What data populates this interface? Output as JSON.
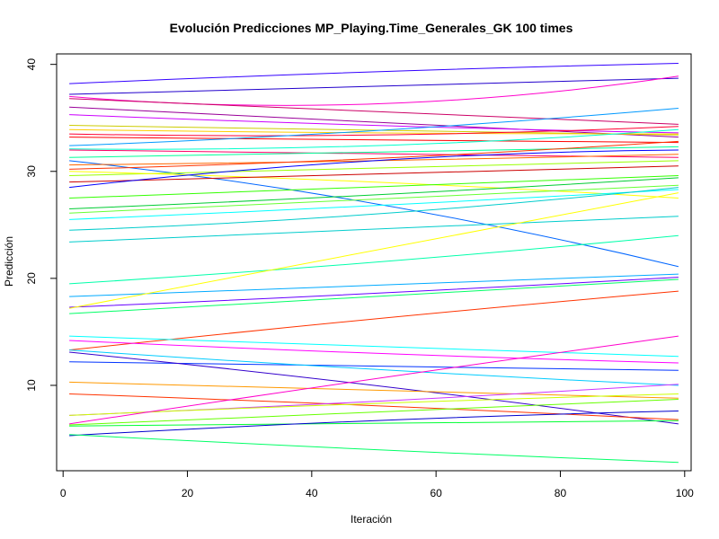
{
  "chart_data": {
    "type": "line",
    "title": "Evolución Predicciones MP_Playing.Time_Generales_GK 100 times",
    "xlabel": "Iteración",
    "ylabel": "Predicción",
    "xlim": [
      1,
      99
    ],
    "ylim": [
      2.8,
      40.2
    ],
    "xticks": [
      0,
      20,
      40,
      60,
      80,
      100
    ],
    "xtick_labels": [
      "0",
      "20",
      "40",
      "60",
      "80",
      "100"
    ],
    "yticks": [
      10,
      20,
      30,
      40
    ],
    "ytick_labels": [
      "10",
      "20",
      "30",
      "40"
    ],
    "grid": false,
    "legend": "none",
    "series": [
      {
        "x": [
          1,
          50,
          99
        ],
        "y": [
          38.2,
          39.3,
          40.1
        ],
        "color": "#3300ff"
      },
      {
        "x": [
          1,
          50,
          99
        ],
        "y": [
          37.2,
          38.0,
          38.7
        ],
        "color": "#2200cc"
      },
      {
        "x": [
          1,
          50,
          99
        ],
        "y": [
          37.0,
          36.3,
          38.9
        ],
        "color": "#ff00cc"
      },
      {
        "x": [
          1,
          50,
          99
        ],
        "y": [
          36.8,
          35.6,
          34.4
        ],
        "color": "#cc0066"
      },
      {
        "x": [
          1,
          50,
          99
        ],
        "y": [
          36.0,
          34.6,
          33.2
        ],
        "color": "#990099"
      },
      {
        "x": [
          1,
          50,
          99
        ],
        "y": [
          35.3,
          34.3,
          33.6
        ],
        "color": "#cc00ff"
      },
      {
        "x": [
          1,
          50,
          99
        ],
        "y": [
          34.3,
          33.8,
          33.4
        ],
        "color": "#cccc00"
      },
      {
        "x": [
          1,
          50,
          99
        ],
        "y": [
          33.9,
          33.6,
          33.5
        ],
        "color": "#ffcc00"
      },
      {
        "x": [
          1,
          50,
          99
        ],
        "y": [
          33.5,
          33.4,
          34.2
        ],
        "color": "#ff0033"
      },
      {
        "x": [
          1,
          50,
          99
        ],
        "y": [
          33.2,
          33.0,
          32.7
        ],
        "color": "#ff0000"
      },
      {
        "x": [
          1,
          50,
          99
        ],
        "y": [
          32.4,
          33.8,
          35.9
        ],
        "color": "#0099ff"
      },
      {
        "x": [
          1,
          50,
          99
        ],
        "y": [
          32.0,
          31.6,
          31.3
        ],
        "color": "#ff0066"
      },
      {
        "x": [
          1,
          50,
          99
        ],
        "y": [
          32.1,
          32.4,
          33.9
        ],
        "color": "#00ffcc"
      },
      {
        "x": [
          1,
          50,
          99
        ],
        "y": [
          31.3,
          31.8,
          32.3
        ],
        "color": "#00ff99"
      },
      {
        "x": [
          1,
          50,
          99
        ],
        "y": [
          31.0,
          27.0,
          21.1
        ],
        "color": "#0066ff"
      },
      {
        "x": [
          1,
          50,
          99
        ],
        "y": [
          30.6,
          31.0,
          31.6
        ],
        "color": "#ff6600"
      },
      {
        "x": [
          1,
          50,
          99
        ],
        "y": [
          30.2,
          31.2,
          32.8
        ],
        "color": "#ff3300"
      },
      {
        "x": [
          1,
          50,
          99
        ],
        "y": [
          29.6,
          30.3,
          31.0
        ],
        "color": "#99ff00"
      },
      {
        "x": [
          1,
          50,
          99
        ],
        "y": [
          30.0,
          29.0,
          27.5
        ],
        "color": "#ffff00"
      },
      {
        "x": [
          1,
          50,
          99
        ],
        "y": [
          29.0,
          29.8,
          30.5
        ],
        "color": "#cc0000"
      },
      {
        "x": [
          1,
          50,
          99
        ],
        "y": [
          28.5,
          31.0,
          32.0
        ],
        "color": "#0000ff"
      },
      {
        "x": [
          1,
          50,
          99
        ],
        "y": [
          27.5,
          28.6,
          29.6
        ],
        "color": "#33ff00"
      },
      {
        "x": [
          1,
          50,
          99
        ],
        "y": [
          26.5,
          27.8,
          29.4
        ],
        "color": "#00cc33"
      },
      {
        "x": [
          1,
          50,
          99
        ],
        "y": [
          26.1,
          27.4,
          28.7
        ],
        "color": "#66ff33"
      },
      {
        "x": [
          1,
          50,
          99
        ],
        "y": [
          25.5,
          26.8,
          28.3
        ],
        "color": "#00ffff"
      },
      {
        "x": [
          1,
          50,
          99
        ],
        "y": [
          24.5,
          26.0,
          28.5
        ],
        "color": "#00cccc"
      },
      {
        "x": [
          1,
          50,
          99
        ],
        "y": [
          23.4,
          24.6,
          25.8
        ],
        "color": "#00cccc"
      },
      {
        "x": [
          1,
          50,
          99
        ],
        "y": [
          19.5,
          21.5,
          24.0
        ],
        "color": "#00ffaa"
      },
      {
        "x": [
          1,
          50,
          99
        ],
        "y": [
          18.3,
          19.4,
          20.4
        ],
        "color": "#00aaff"
      },
      {
        "x": [
          1,
          50,
          99
        ],
        "y": [
          17.3,
          18.6,
          20.1
        ],
        "color": "#6600ff"
      },
      {
        "x": [
          1,
          50,
          99
        ],
        "y": [
          17.2,
          22.6,
          28.0
        ],
        "color": "#ffff00"
      },
      {
        "x": [
          1,
          50,
          99
        ],
        "y": [
          16.7,
          18.3,
          19.9
        ],
        "color": "#00ff66"
      },
      {
        "x": [
          1,
          50,
          99
        ],
        "y": [
          13.3,
          16.2,
          18.8
        ],
        "color": "#ff3300"
      },
      {
        "x": [
          1,
          50,
          99
        ],
        "y": [
          14.6,
          13.6,
          12.7
        ],
        "color": "#00ffff"
      },
      {
        "x": [
          1,
          50,
          99
        ],
        "y": [
          14.2,
          13.0,
          12.1
        ],
        "color": "#ff00ff"
      },
      {
        "x": [
          1,
          50,
          99
        ],
        "y": [
          12.2,
          11.8,
          11.4
        ],
        "color": "#0033ff"
      },
      {
        "x": [
          1,
          50,
          99
        ],
        "y": [
          13.3,
          11.5,
          10.0
        ],
        "color": "#00ccff"
      },
      {
        "x": [
          1,
          50,
          99
        ],
        "y": [
          13.1,
          10.0,
          6.4
        ],
        "color": "#3300cc"
      },
      {
        "x": [
          1,
          50,
          99
        ],
        "y": [
          10.3,
          9.6,
          8.8
        ],
        "color": "#ff9900"
      },
      {
        "x": [
          1,
          50,
          99
        ],
        "y": [
          9.2,
          8.1,
          6.8
        ],
        "color": "#ff3300"
      },
      {
        "x": [
          1,
          50,
          99
        ],
        "y": [
          7.2,
          8.5,
          10.1
        ],
        "color": "#cc33ff"
      },
      {
        "x": [
          1,
          50,
          99
        ],
        "y": [
          7.2,
          8.3,
          9.2
        ],
        "color": "#ccff00"
      },
      {
        "x": [
          1,
          50,
          99
        ],
        "y": [
          6.4,
          10.6,
          14.6
        ],
        "color": "#ff00cc"
      },
      {
        "x": [
          1,
          50,
          99
        ],
        "y": [
          6.3,
          7.5,
          8.7
        ],
        "color": "#66ff00"
      },
      {
        "x": [
          1,
          50,
          99
        ],
        "y": [
          6.2,
          6.5,
          6.7
        ],
        "color": "#00ff33"
      },
      {
        "x": [
          1,
          50,
          99
        ],
        "y": [
          5.3,
          6.7,
          7.6
        ],
        "color": "#0000cc"
      },
      {
        "x": [
          1,
          50,
          99
        ],
        "y": [
          5.4,
          4.0,
          2.8
        ],
        "color": "#00ff66"
      }
    ]
  }
}
